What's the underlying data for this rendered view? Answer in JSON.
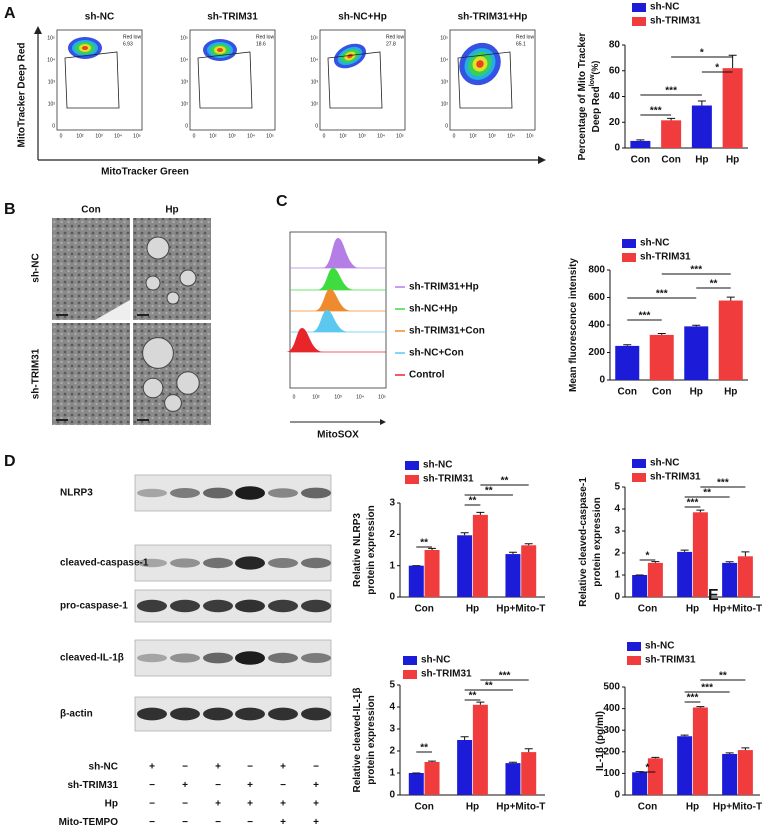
{
  "panel_labels": [
    "A",
    "B",
    "C",
    "D",
    "E"
  ],
  "flow": {
    "ylabel": "MitoTracker Deep Red",
    "xlabel": "MitoTracker Green",
    "gate_label": "Red low",
    "axis_ticks": [
      "0",
      "10²",
      "10³",
      "10⁴",
      "10⁵"
    ],
    "plots": [
      {
        "title": "sh-NC",
        "gate_value": 6.93
      },
      {
        "title": "sh-TRIM31",
        "gate_value": 18.6
      },
      {
        "title": "sh-NC+Hp",
        "gate_value": 27.8
      },
      {
        "title": "sh-TRIM31+Hp",
        "gate_value": 65.1
      }
    ]
  },
  "em": {
    "columns": [
      "Con",
      "Hp"
    ],
    "rows": [
      "sh-NC",
      "sh-TRIM31"
    ]
  },
  "histogram": {
    "xlabel": "MitoSOX",
    "xticks": [
      "0",
      "10²",
      "10³",
      "10⁴",
      "10⁵"
    ],
    "legend": [
      {
        "name": "sh-TRIM31+Hp",
        "color": "#b57ee6"
      },
      {
        "name": "sh-NC+Hp",
        "color": "#3fdc3f"
      },
      {
        "name": "sh-TRIM31+Con",
        "color": "#f08a2e"
      },
      {
        "name": "sh-NC+Con",
        "color": "#5cc8f0"
      },
      {
        "name": "Control",
        "color": "#e8262a"
      }
    ]
  },
  "blot": {
    "rows": [
      "NLRP3",
      "cleaved-caspase-1",
      "pro-caspase-1",
      "cleaved-IL-1β",
      "β-actin"
    ],
    "treatments": [
      {
        "name": "sh-NC",
        "signs": [
          "+",
          "−",
          "+",
          "−",
          "+",
          "−"
        ]
      },
      {
        "name": "sh-TRIM31",
        "signs": [
          "−",
          "+",
          "−",
          "+",
          "−",
          "+"
        ]
      },
      {
        "name": "Hp",
        "signs": [
          "−",
          "−",
          "+",
          "+",
          "+",
          "+"
        ]
      },
      {
        "name": "Mito-TEMPO",
        "signs": [
          "−",
          "−",
          "−",
          "−",
          "+",
          "+"
        ]
      }
    ]
  },
  "chart_data": [
    {
      "type": "bar",
      "ylabel": [
        "Percentage of Mito Tracker",
        "Deep Red"
      ],
      "ylabel_superscript": "low",
      "ylabel_suffix": "(%)",
      "categories": [
        "Con",
        "Con",
        "Hp",
        "Hp"
      ],
      "series": [
        {
          "name": "sh-NC",
          "color": "#1c1cd8",
          "values": [
            5.5,
            null,
            33,
            null
          ],
          "errors": [
            0.8,
            null,
            3.5,
            null
          ]
        },
        {
          "name": "sh-TRIM31",
          "color": "#f03c3c",
          "values": [
            null,
            21.5,
            null,
            62
          ],
          "errors": [
            null,
            1.5,
            null,
            10
          ]
        }
      ],
      "ylim": [
        0,
        80
      ],
      "yticks": [
        0,
        20,
        40,
        60,
        80
      ],
      "annotations": [
        "***",
        "***",
        "*",
        "*"
      ]
    },
    {
      "type": "bar",
      "ylabel": [
        "Mean fluorescence intensity"
      ],
      "categories": [
        "Con",
        "Con",
        "Hp",
        "Hp"
      ],
      "series": [
        {
          "name": "sh-NC",
          "color": "#1c1cd8",
          "values": [
            248,
            null,
            390,
            null
          ],
          "errors": [
            8,
            null,
            8,
            null
          ]
        },
        {
          "name": "sh-TRIM31",
          "color": "#f03c3c",
          "values": [
            null,
            328,
            null,
            578
          ],
          "errors": [
            null,
            10,
            null,
            25
          ]
        }
      ],
      "ylim": [
        0,
        800
      ],
      "yticks": [
        0,
        200,
        400,
        600,
        800
      ],
      "annotations": [
        "***",
        "***",
        "**",
        "***"
      ]
    },
    {
      "type": "bar",
      "ylabel": [
        "Relative NLRP3",
        "protein expression"
      ],
      "categories": [
        "Con",
        "Hp",
        "Hp+Mito-T"
      ],
      "series": [
        {
          "name": "sh-NC",
          "color": "#1c1cd8",
          "values": [
            1,
            1.97,
            1.37
          ],
          "errors": [
            0,
            0.08,
            0.06
          ]
        },
        {
          "name": "sh-TRIM31",
          "color": "#f03c3c",
          "values": [
            1.5,
            2.62,
            1.65
          ],
          "errors": [
            0.05,
            0.08,
            0.05
          ]
        }
      ],
      "ylim": [
        0,
        3
      ],
      "yticks": [
        0,
        1,
        2,
        3
      ],
      "annotations": [
        "**",
        "**",
        "**",
        "**"
      ]
    },
    {
      "type": "bar",
      "ylabel": [
        "Relative cleaved-caspase-1",
        "protein expression"
      ],
      "categories": [
        "Con",
        "Hp",
        "Hp+Mito-T"
      ],
      "series": [
        {
          "name": "sh-NC",
          "color": "#1c1cd8",
          "values": [
            1,
            2.05,
            1.55
          ],
          "errors": [
            0,
            0.08,
            0.05
          ]
        },
        {
          "name": "sh-TRIM31",
          "color": "#f03c3c",
          "values": [
            1.55,
            3.85,
            1.85
          ],
          "errors": [
            0.06,
            0.1,
            0.2
          ]
        }
      ],
      "ylim": [
        0,
        5
      ],
      "yticks": [
        0,
        1,
        2,
        3,
        4,
        5
      ],
      "annotations": [
        "*",
        "***",
        "**",
        "***"
      ]
    },
    {
      "type": "bar",
      "ylabel": [
        "Relative cleaved-IL-1β",
        "protein expression"
      ],
      "categories": [
        "Con",
        "Hp",
        "Hp+Mito-T"
      ],
      "series": [
        {
          "name": "sh-NC",
          "color": "#1c1cd8",
          "values": [
            1,
            2.5,
            1.45
          ],
          "errors": [
            0,
            0.15,
            0.04
          ]
        },
        {
          "name": "sh-TRIM31",
          "color": "#f03c3c",
          "values": [
            1.5,
            4.1,
            1.95
          ],
          "errors": [
            0.04,
            0.12,
            0.15
          ]
        }
      ],
      "ylim": [
        0,
        5
      ],
      "yticks": [
        0,
        1,
        2,
        3,
        4,
        5
      ],
      "annotations": [
        "**",
        "**",
        "**",
        "***"
      ]
    },
    {
      "type": "bar",
      "ylabel": [
        "IL-1β (pg/ml)"
      ],
      "categories": [
        "Con",
        "Hp",
        "Hp+Mito-T"
      ],
      "series": [
        {
          "name": "sh-NC",
          "color": "#1c1cd8",
          "values": [
            105,
            272,
            190
          ],
          "errors": [
            3,
            5,
            5
          ]
        },
        {
          "name": "sh-TRIM31",
          "color": "#f03c3c",
          "values": [
            170,
            405,
            208
          ],
          "errors": [
            4,
            4,
            10
          ]
        }
      ],
      "ylim": [
        0,
        500
      ],
      "yticks": [
        0,
        100,
        200,
        300,
        400,
        500
      ],
      "annotations": [
        "*",
        "***",
        "***",
        "**"
      ]
    }
  ]
}
